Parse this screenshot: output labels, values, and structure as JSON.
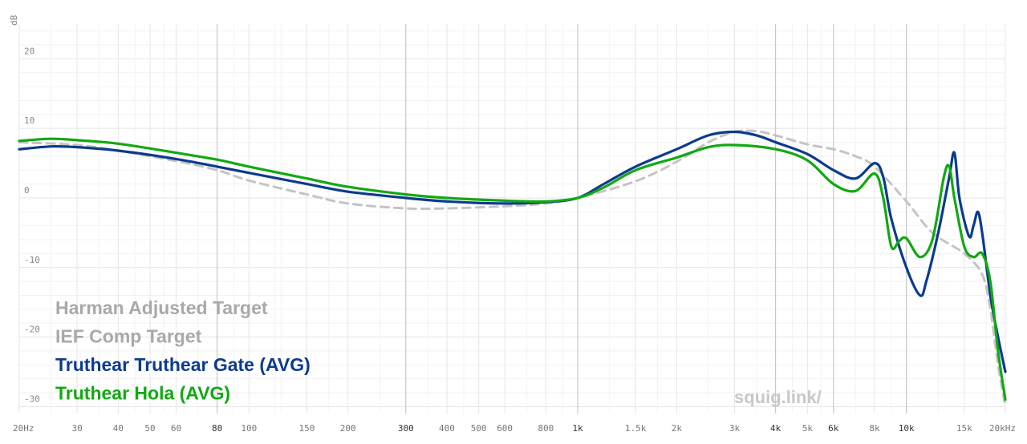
{
  "chart_data": {
    "type": "line",
    "ylabel": "dB",
    "xscale": "log",
    "xlim": [
      20,
      20000
    ],
    "ylim": [
      -31,
      25
    ],
    "grid": true,
    "legend_position": "bottom-left",
    "yticks": [
      {
        "v": 20,
        "label": "20"
      },
      {
        "v": 10,
        "label": "10"
      },
      {
        "v": 0,
        "label": "0"
      },
      {
        "v": -10,
        "label": "-10"
      },
      {
        "v": -20,
        "label": "-20"
      },
      {
        "v": -30,
        "label": "-30"
      }
    ],
    "xticks": [
      {
        "v": 20,
        "label": "20Hz",
        "major": false
      },
      {
        "v": 30,
        "label": "30",
        "major": false
      },
      {
        "v": 40,
        "label": "40",
        "major": false
      },
      {
        "v": 50,
        "label": "50",
        "major": false
      },
      {
        "v": 60,
        "label": "60",
        "major": false
      },
      {
        "v": 80,
        "label": "80",
        "major": true
      },
      {
        "v": 100,
        "label": "100",
        "major": false
      },
      {
        "v": 150,
        "label": "150",
        "major": false
      },
      {
        "v": 200,
        "label": "200",
        "major": false
      },
      {
        "v": 300,
        "label": "300",
        "major": true
      },
      {
        "v": 400,
        "label": "400",
        "major": false
      },
      {
        "v": 500,
        "label": "500",
        "major": false
      },
      {
        "v": 600,
        "label": "600",
        "major": false
      },
      {
        "v": 800,
        "label": "800",
        "major": false
      },
      {
        "v": 1000,
        "label": "1k",
        "major": true
      },
      {
        "v": 1500,
        "label": "1.5k",
        "major": false
      },
      {
        "v": 2000,
        "label": "2k",
        "major": false
      },
      {
        "v": 3000,
        "label": "3k",
        "major": false
      },
      {
        "v": 4000,
        "label": "4k",
        "major": true
      },
      {
        "v": 5000,
        "label": "5k",
        "major": false
      },
      {
        "v": 6000,
        "label": "6k",
        "major": true
      },
      {
        "v": 8000,
        "label": "8k",
        "major": false
      },
      {
        "v": 10000,
        "label": "10k",
        "major": true
      },
      {
        "v": 15000,
        "label": "15k",
        "major": false
      },
      {
        "v": 20000,
        "label": "20kHz",
        "major": false
      }
    ],
    "series": [
      {
        "name": "Harman Adjusted Target",
        "color": "#c4c4c4",
        "dashed": true,
        "points": [
          [
            20,
            8
          ],
          [
            30,
            7.6
          ],
          [
            40,
            6.8
          ],
          [
            60,
            5.3
          ],
          [
            80,
            4
          ],
          [
            100,
            2.5
          ],
          [
            150,
            0.5
          ],
          [
            200,
            -0.8
          ],
          [
            300,
            -1.5
          ],
          [
            400,
            -1.5
          ],
          [
            600,
            -1.2
          ],
          [
            800,
            -0.8
          ],
          [
            1000,
            0
          ],
          [
            1500,
            2.4
          ],
          [
            2000,
            5.2
          ],
          [
            2500,
            8
          ],
          [
            3000,
            9.5
          ],
          [
            3500,
            9.6
          ],
          [
            4000,
            9
          ],
          [
            5000,
            7.7
          ],
          [
            6000,
            7
          ],
          [
            7000,
            6
          ],
          [
            8000,
            4.5
          ],
          [
            10000,
            -0.5
          ],
          [
            12000,
            -5
          ],
          [
            15000,
            -8
          ],
          [
            17000,
            -11
          ],
          [
            18000,
            -16
          ],
          [
            19000,
            -24
          ],
          [
            20000,
            -30
          ]
        ]
      },
      {
        "name": "IEF Comp Target",
        "color": "#c4c4c4",
        "dashed": true,
        "points": []
      },
      {
        "name": "Truthear Truthear Gate (AVG)",
        "color": "#0b3b8f",
        "dashed": false,
        "points": [
          [
            20,
            7
          ],
          [
            25,
            7.4
          ],
          [
            30,
            7.3
          ],
          [
            40,
            6.8
          ],
          [
            60,
            5.6
          ],
          [
            80,
            4.5
          ],
          [
            100,
            3.6
          ],
          [
            150,
            2
          ],
          [
            200,
            0.9
          ],
          [
            300,
            0
          ],
          [
            400,
            -0.5
          ],
          [
            600,
            -0.8
          ],
          [
            800,
            -0.6
          ],
          [
            1000,
            0
          ],
          [
            1200,
            2
          ],
          [
            1500,
            4.5
          ],
          [
            2000,
            7
          ],
          [
            2500,
            9
          ],
          [
            3000,
            9.5
          ],
          [
            3500,
            9
          ],
          [
            4000,
            8
          ],
          [
            5000,
            6.3
          ],
          [
            6000,
            4
          ],
          [
            7000,
            2.8
          ],
          [
            8000,
            5
          ],
          [
            8500,
            3
          ],
          [
            9000,
            -3
          ],
          [
            10000,
            -10
          ],
          [
            11000,
            -14
          ],
          [
            11500,
            -12
          ],
          [
            12500,
            -5
          ],
          [
            13500,
            3
          ],
          [
            14000,
            6.5
          ],
          [
            14500,
            0
          ],
          [
            15500,
            -5.5
          ],
          [
            16000,
            -4
          ],
          [
            16500,
            -2
          ],
          [
            17000,
            -5
          ],
          [
            18000,
            -14
          ],
          [
            19000,
            -20
          ],
          [
            20000,
            -25
          ]
        ]
      },
      {
        "name": "Truthear Hola (AVG)",
        "color": "#12a812",
        "dashed": false,
        "points": [
          [
            20,
            8.2
          ],
          [
            25,
            8.5
          ],
          [
            30,
            8.3
          ],
          [
            40,
            7.8
          ],
          [
            60,
            6.5
          ],
          [
            80,
            5.5
          ],
          [
            100,
            4.5
          ],
          [
            150,
            2.8
          ],
          [
            200,
            1.6
          ],
          [
            300,
            0.5
          ],
          [
            400,
            0
          ],
          [
            600,
            -0.4
          ],
          [
            800,
            -0.5
          ],
          [
            1000,
            0
          ],
          [
            1200,
            1.5
          ],
          [
            1500,
            4
          ],
          [
            2000,
            5.8
          ],
          [
            2500,
            7.3
          ],
          [
            3000,
            7.6
          ],
          [
            4000,
            7
          ],
          [
            5000,
            5.4
          ],
          [
            6000,
            2
          ],
          [
            7000,
            1
          ],
          [
            8000,
            3.5
          ],
          [
            8500,
            0
          ],
          [
            9000,
            -7
          ],
          [
            9500,
            -6.2
          ],
          [
            10000,
            -5.8
          ],
          [
            11000,
            -8.5
          ],
          [
            12000,
            -6
          ],
          [
            13000,
            3
          ],
          [
            13500,
            4.5
          ],
          [
            14000,
            0
          ],
          [
            15000,
            -7
          ],
          [
            16000,
            -8.5
          ],
          [
            17000,
            -8
          ],
          [
            18000,
            -12
          ],
          [
            19000,
            -22
          ],
          [
            20000,
            -29
          ]
        ]
      }
    ]
  },
  "watermark": "squig.link/"
}
